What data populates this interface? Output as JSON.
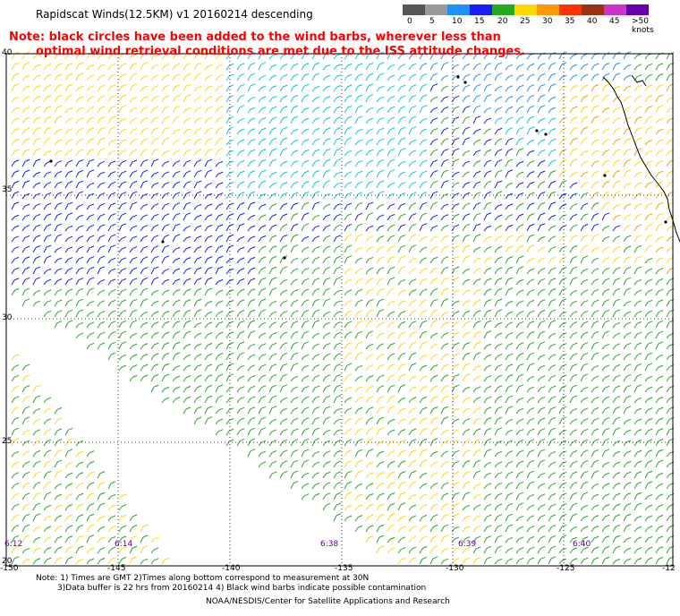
{
  "title": "Rapidscat Winds(12.5KM)  v1  20160214  descending",
  "note": {
    "line1": "Note: black circles have been added to the wind barbs, wherever less than",
    "line2": "optimal wind retrieval conditions are met due to the ISS attitude changes."
  },
  "colorbar": {
    "labels": [
      "0",
      "5",
      "10",
      "15",
      "20",
      "25",
      "30",
      "35",
      "40",
      "45",
      ">50 knots"
    ],
    "colors": [
      "#555555",
      "#9a9a9a",
      "#1e90ff",
      "#1a1aff",
      "#22aa22",
      "#ffd800",
      "#ff9900",
      "#ff3300",
      "#993311",
      "#cc33cc",
      "#6600aa"
    ]
  },
  "axes": {
    "lat_labels": [
      "40",
      "35",
      "30",
      "25",
      "20"
    ],
    "lon_labels": [
      "-150",
      "-145",
      "-140",
      "-135",
      "-130",
      "-125",
      "-12"
    ]
  },
  "times": [
    "6:12",
    "6:14",
    "6:38",
    "6:39",
    "6:40"
  ],
  "footer": {
    "line1": "Note: 1) Times are GMT 2)Times along bottom correspond to measurement at 30N",
    "line2": "3)Data buffer is 22 hrs from 20160214 4) Black wind barbs indicate possible contamination",
    "line3": "NOAA/NESDIS/Center for Satellite Applications and Research"
  }
}
